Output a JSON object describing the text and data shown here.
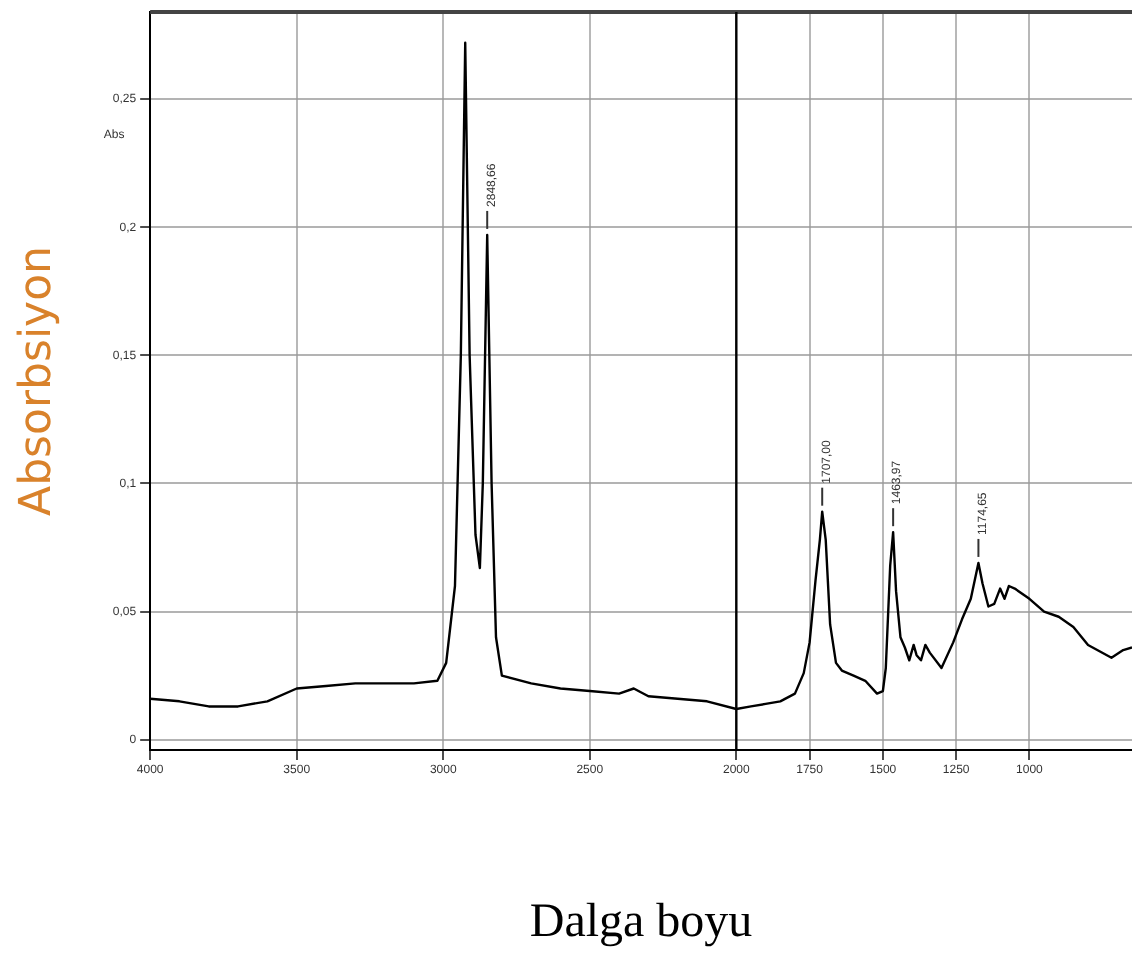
{
  "chart_data": {
    "type": "line",
    "xlabel": "Dalga boyu",
    "ylabel": "Absorbsiyon",
    "annotations": [
      "Abs",
      {
        "text": "2848,66",
        "x": 2850,
        "y": 0.197
      },
      {
        "text": "1707,00",
        "x": 1707,
        "y": 0.089
      },
      {
        "text": "1463,97",
        "x": 1465,
        "y": 0.081
      },
      {
        "text": "1174,65",
        "x": 1174,
        "y": 0.069
      }
    ],
    "x": [
      4000,
      3900,
      3800,
      3700,
      3600,
      3500,
      3400,
      3300,
      3200,
      3100,
      3020,
      2990,
      2960,
      2940,
      2925,
      2910,
      2890,
      2875,
      2865,
      2850,
      2835,
      2820,
      2800,
      2700,
      2600,
      2500,
      2400,
      2350,
      2300,
      2200,
      2100,
      2000,
      1950,
      1900,
      1850,
      1800,
      1770,
      1750,
      1730,
      1715,
      1707,
      1695,
      1680,
      1660,
      1640,
      1600,
      1560,
      1520,
      1500,
      1490,
      1475,
      1465,
      1455,
      1440,
      1425,
      1410,
      1395,
      1385,
      1370,
      1355,
      1340,
      1300,
      1260,
      1230,
      1200,
      1174,
      1160,
      1140,
      1120,
      1100,
      1085,
      1070,
      1050,
      1000,
      950,
      900,
      850,
      800,
      720,
      680,
      650
    ],
    "series": [
      {
        "color": "#000000",
        "values": [
          0.016,
          0.015,
          0.013,
          0.013,
          0.015,
          0.02,
          0.021,
          0.022,
          0.022,
          0.022,
          0.023,
          0.03,
          0.06,
          0.15,
          0.272,
          0.15,
          0.08,
          0.067,
          0.1,
          0.197,
          0.1,
          0.04,
          0.025,
          0.022,
          0.02,
          0.019,
          0.018,
          0.02,
          0.017,
          0.016,
          0.015,
          0.012,
          0.013,
          0.014,
          0.015,
          0.018,
          0.026,
          0.038,
          0.062,
          0.078,
          0.089,
          0.078,
          0.045,
          0.03,
          0.027,
          0.025,
          0.023,
          0.018,
          0.019,
          0.028,
          0.068,
          0.081,
          0.058,
          0.04,
          0.036,
          0.031,
          0.037,
          0.033,
          0.031,
          0.037,
          0.034,
          0.028,
          0.038,
          0.047,
          0.055,
          0.069,
          0.061,
          0.052,
          0.053,
          0.059,
          0.055,
          0.06,
          0.059,
          0.055,
          0.05,
          0.048,
          0.044,
          0.037,
          0.032,
          0.035,
          0.036
        ]
      }
    ],
    "xlim": [
      4000,
      650
    ],
    "ylim": [
      -0.004,
      0.284
    ],
    "xticks": [
      4000,
      3500,
      3000,
      2500,
      2000,
      1750,
      1500,
      1250,
      1000
    ],
    "yticks": [
      {
        "value": 0,
        "label": "0"
      },
      {
        "value": 0.05,
        "label": "0,05"
      },
      {
        "value": 0.1,
        "label": "0,1"
      },
      {
        "value": 0.15,
        "label": "0,15"
      },
      {
        "value": 0.2,
        "label": "0,2"
      },
      {
        "value": 0.25,
        "label": "0,25"
      }
    ],
    "ref_lines": [
      {
        "axis": "x",
        "value": 2000,
        "color": "#000000"
      }
    ],
    "grid": true,
    "legend": false,
    "marker": "none",
    "line_style": "solid"
  }
}
